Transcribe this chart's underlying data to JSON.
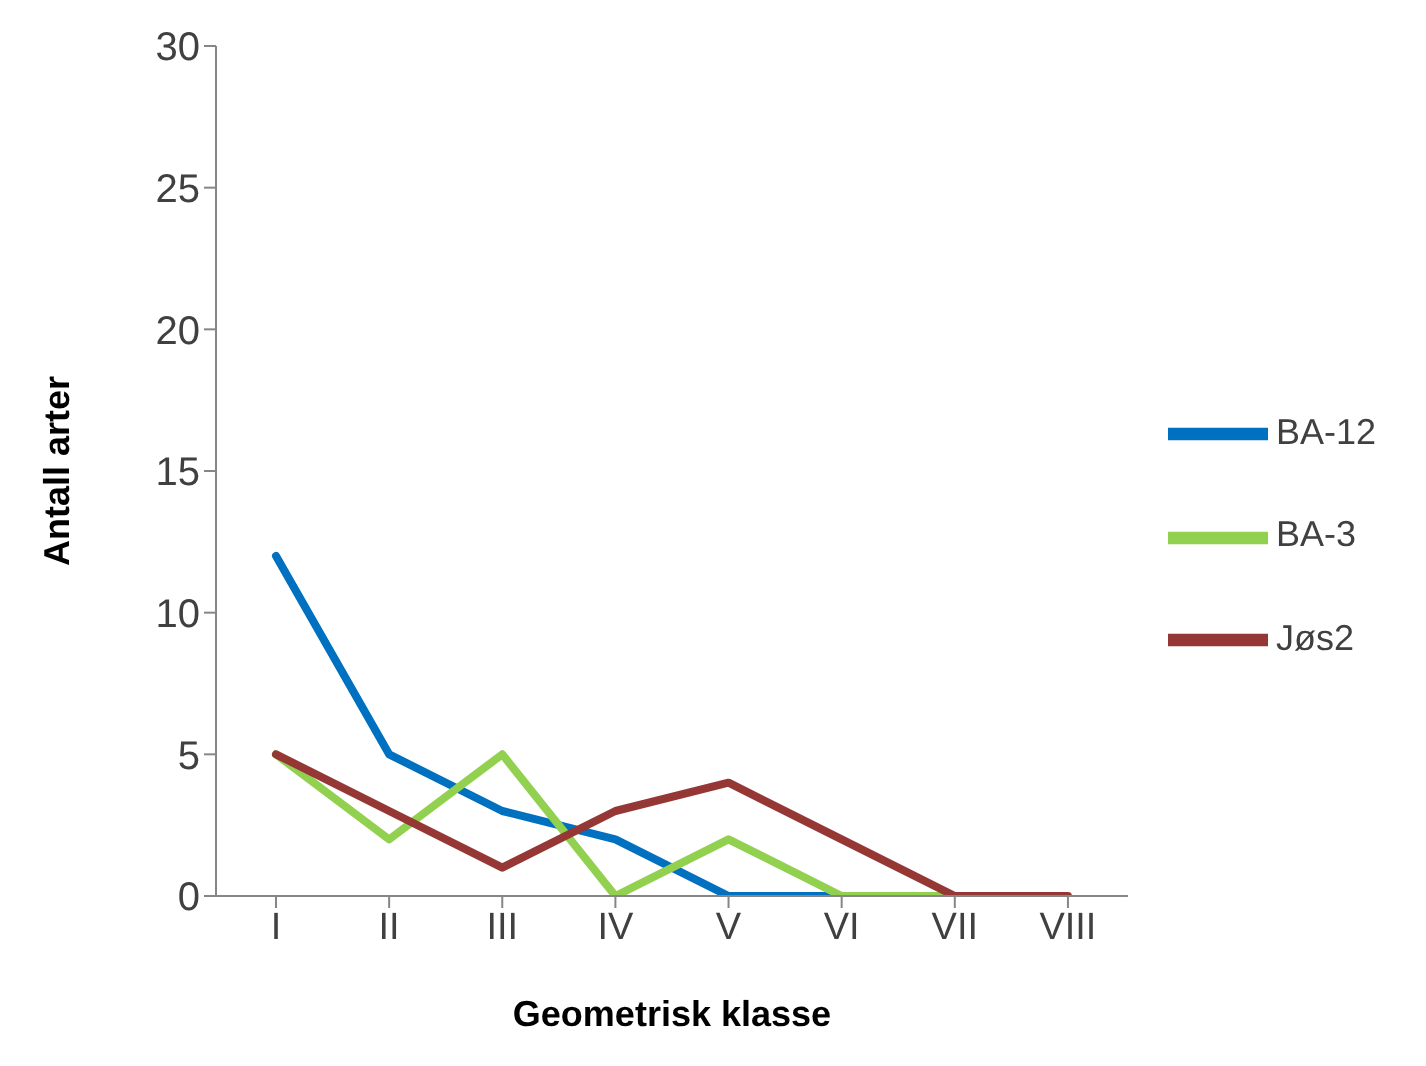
{
  "chart_data": {
    "type": "line",
    "xlabel": "Geometrisk klasse",
    "ylabel": "Antall arter",
    "categories": [
      "I",
      "II",
      "III",
      "IV",
      "V",
      "VI",
      "VII",
      "VIII"
    ],
    "series": [
      {
        "name": "BA-12",
        "color": "#0070c0",
        "values": [
          12,
          5,
          3,
          2,
          0,
          0,
          null,
          null
        ]
      },
      {
        "name": "BA-3",
        "color": "#92d050",
        "values": [
          5,
          2,
          5,
          0,
          2,
          0,
          0,
          null
        ]
      },
      {
        "name": "Jøs2",
        "color": "#953735",
        "values": [
          5,
          3,
          1,
          3,
          4,
          2,
          0,
          0
        ]
      }
    ],
    "ylim": [
      0,
      30
    ],
    "yticks": [
      0,
      5,
      10,
      15,
      20,
      25,
      30
    ],
    "grid": false,
    "legend": "right",
    "marker": "none",
    "line_style": "solid"
  }
}
